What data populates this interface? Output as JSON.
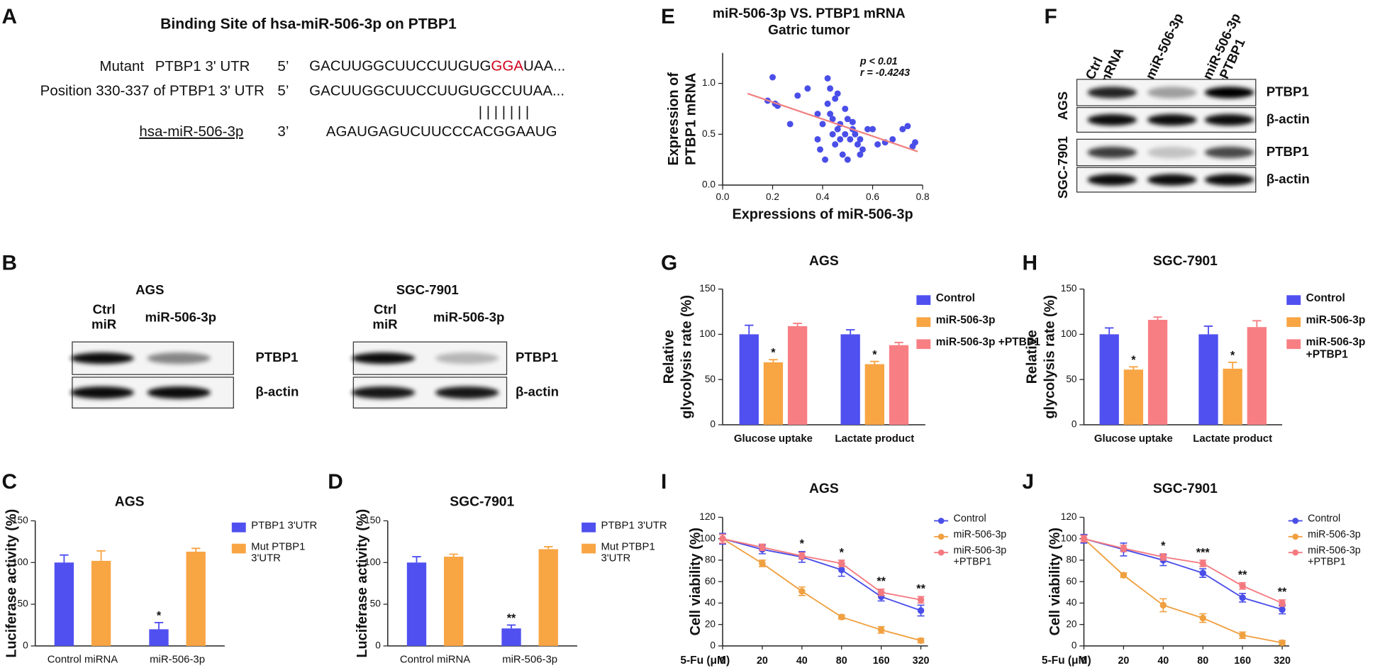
{
  "panel_labels": [
    "A",
    "B",
    "C",
    "D",
    "E",
    "F",
    "G",
    "H",
    "I",
    "J"
  ],
  "panel_a": {
    "title": "Binding Site of hsa-miR-506-3p on PTBP1",
    "mutant": {
      "label": "Mutant",
      "gene": "PTBP1 3' UTR",
      "end": "5’",
      "seq": [
        "GACUUGGCUUCCUUGUG",
        "GGA",
        "UAA..."
      ]
    },
    "wildtype": {
      "label": "Position 330-337 of PTBP1 3' UTR",
      "end": "5’",
      "seq": "GACUUGGCUUCCUUGUGCCUUAA..."
    },
    "pairing": "| | | | | | |",
    "mirna": {
      "label": "hsa-miR-506-3p",
      "end": "3’",
      "seq": "AGAUGAGUCUUCCCACGGAAUG"
    }
  },
  "panel_b": [
    {
      "title": "AGS",
      "lanes": [
        "Ctrl miR",
        "miR-506-3p"
      ],
      "rows": [
        "PTBP1",
        "β-actin"
      ]
    },
    {
      "title": "SGC-7901",
      "lanes": [
        "Ctrl miR",
        "miR-506-3p"
      ],
      "rows": [
        "PTBP1",
        "β-actin"
      ]
    }
  ],
  "panel_f": {
    "lanes": [
      "Ctrl mRNA",
      "miR-506-3p",
      "miR-506-3p +PTBP1"
    ],
    "blocks": [
      {
        "cell": "AGS",
        "rows": [
          "PTBP1",
          "β-actin"
        ]
      },
      {
        "cell": "SGC-7901",
        "rows": [
          "PTBP1",
          "β-actin"
        ]
      }
    ]
  },
  "chart_data": [
    {
      "type": "bar",
      "title": "AGS",
      "ylabel": "Luciferase activity (%)",
      "categories": [
        "Control miRNA",
        "miR-506-3p"
      ],
      "ylim": [
        0,
        150
      ],
      "yticks": [
        0,
        50,
        100,
        150
      ],
      "series": [
        {
          "name": "PTBP1 3'UTR",
          "color": "#5050f0",
          "values": [
            100,
            20
          ],
          "errors": [
            9,
            8
          ],
          "sig": [
            null,
            "*"
          ]
        },
        {
          "name": "Mut PTBP1 3'UTR",
          "color": "#f8a544",
          "values": [
            102,
            113
          ],
          "errors": [
            12,
            4
          ]
        }
      ]
    },
    {
      "type": "bar",
      "title": "SGC-7901",
      "ylabel": "Luciferase activity (%)",
      "categories": [
        "Control miRNA",
        "miR-506-3p"
      ],
      "ylim": [
        0,
        150
      ],
      "yticks": [
        0,
        50,
        100,
        150
      ],
      "series": [
        {
          "name": "PTBP1 3'UTR",
          "color": "#5050f0",
          "values": [
            100,
            21
          ],
          "errors": [
            7,
            4
          ],
          "sig": [
            null,
            "**"
          ]
        },
        {
          "name": "Mut PTBP1 3'UTR",
          "color": "#f8a544",
          "values": [
            107,
            116
          ],
          "errors": [
            3,
            3
          ]
        }
      ]
    },
    {
      "type": "scatter",
      "title": "miR-506-3p VS. PTBP1 mRNA",
      "subtitle": "Gatric tumor",
      "xlabel": "Expressions of miR-506-3p",
      "ylabel": [
        "Expression of",
        "PTBP1 mRNA"
      ],
      "annotations": [
        "p < 0.01",
        "r = -0.4243"
      ],
      "xlim": [
        0,
        0.8
      ],
      "xticks": [
        {
          "value": 0,
          "label": "0.0"
        },
        0.2,
        0.4,
        0.6,
        0.8
      ],
      "ylim": [
        0,
        1.3
      ],
      "yticks": [
        {
          "value": 0,
          "label": "0.0"
        },
        0.5,
        {
          "value": 1,
          "label": "1.0"
        }
      ],
      "color": "#4a4ee8",
      "x": [
        0.18,
        0.2,
        0.21,
        0.22,
        0.27,
        0.3,
        0.34,
        0.38,
        0.38,
        0.39,
        0.4,
        0.41,
        0.42,
        0.42,
        0.43,
        0.43,
        0.44,
        0.44,
        0.45,
        0.45,
        0.46,
        0.46,
        0.47,
        0.47,
        0.48,
        0.49,
        0.49,
        0.5,
        0.5,
        0.51,
        0.52,
        0.52,
        0.53,
        0.54,
        0.55,
        0.56,
        0.58,
        0.6,
        0.62,
        0.65,
        0.68,
        0.72,
        0.74,
        0.76,
        0.77,
        0.55
      ],
      "values": [
        0.83,
        1.06,
        0.8,
        0.78,
        0.6,
        0.88,
        0.95,
        0.7,
        0.45,
        0.35,
        0.6,
        0.25,
        0.8,
        1.05,
        0.95,
        0.7,
        0.65,
        0.5,
        0.85,
        0.4,
        0.9,
        0.55,
        0.6,
        0.45,
        0.3,
        0.75,
        0.5,
        0.65,
        0.25,
        0.45,
        0.62,
        0.55,
        0.5,
        0.4,
        0.45,
        0.35,
        0.55,
        0.55,
        0.4,
        0.42,
        0.45,
        0.55,
        0.58,
        0.38,
        0.42,
        0.3
      ],
      "fit": {
        "x": [
          0.1,
          0.78
        ],
        "values": [
          0.9,
          0.33
        ],
        "color": "#f08080"
      }
    },
    {
      "type": "bar",
      "title": "AGS",
      "ylabel": [
        "Relative",
        "glycolysis rate (%)"
      ],
      "categories": [
        "Glucose uptake",
        "Lactate product"
      ],
      "ylim": [
        0,
        150
      ],
      "yticks": [
        0,
        50,
        100,
        150
      ],
      "series": [
        {
          "name": "Control",
          "color": "#5050f0",
          "values": [
            100,
            100
          ],
          "errors": [
            10,
            5
          ]
        },
        {
          "name": "miR-506-3p",
          "color": "#f8a544",
          "values": [
            69,
            67
          ],
          "errors": [
            3,
            3
          ],
          "sig": [
            "*",
            "*"
          ]
        },
        {
          "name": "miR-506-3p +PTBP1",
          "color": "#f77f84",
          "values": [
            109,
            88
          ],
          "errors": [
            3,
            3
          ]
        }
      ]
    },
    {
      "type": "bar",
      "title": "SGC-7901",
      "ylabel": [
        "Relative",
        "glycolysis rate (%)"
      ],
      "categories": [
        "Glucose uptake",
        "Lactate product"
      ],
      "ylim": [
        0,
        150
      ],
      "yticks": [
        0,
        50,
        100,
        150
      ],
      "series": [
        {
          "name": "Control",
          "color": "#5050f0",
          "values": [
            100,
            100
          ],
          "errors": [
            7,
            9
          ]
        },
        {
          "name": "miR-506-3p",
          "color": "#f8a544",
          "values": [
            61,
            62
          ],
          "errors": [
            3,
            7
          ],
          "sig": [
            "*",
            "*"
          ]
        },
        {
          "name": "miR-506-3p +PTBP1",
          "color": "#f77f84",
          "values": [
            116,
            108
          ],
          "errors": [
            3,
            7
          ]
        }
      ]
    },
    {
      "type": "line",
      "title": "AGS",
      "ylabel": "Cell viability (%)",
      "xlabel": "5-Fu (μM)",
      "categories": [
        "0",
        "20",
        "40",
        "80",
        "160",
        "320"
      ],
      "ylim": [
        0,
        120
      ],
      "yticks": [
        0,
        20,
        40,
        60,
        80,
        100,
        120
      ],
      "sig": [
        null,
        null,
        "*",
        "*",
        "**",
        "**"
      ],
      "series": [
        {
          "name": "Control",
          "color": "#4a4ee8",
          "values": [
            100,
            90,
            83,
            71,
            46,
            33
          ],
          "errors": [
            5,
            4,
            5,
            6,
            4,
            5
          ]
        },
        {
          "name": "miR-506-3p",
          "color": "#f0a040",
          "values": [
            100,
            77,
            51,
            27,
            15,
            5
          ],
          "errors": [
            4,
            3,
            4,
            2,
            3,
            2
          ]
        },
        {
          "name": "miR-506-3p +PTBP1",
          "color": "#f47a80",
          "values": [
            100,
            92,
            84,
            77,
            50,
            43
          ],
          "errors": [
            4,
            3,
            3,
            3,
            3,
            3
          ]
        }
      ]
    },
    {
      "type": "line",
      "title": "SGC-7901",
      "ylabel": "Cell viability (%)",
      "xlabel": "5-Fu (μM)",
      "categories": [
        "0",
        "20",
        "40",
        "80",
        "160",
        "320"
      ],
      "ylim": [
        0,
        120
      ],
      "yticks": [
        0,
        20,
        40,
        60,
        80,
        100,
        120
      ],
      "sig": [
        null,
        null,
        "*",
        "***",
        "**",
        "**"
      ],
      "series": [
        {
          "name": "Control",
          "color": "#4a4ee8",
          "values": [
            100,
            90,
            80,
            68,
            45,
            34
          ],
          "errors": [
            4,
            6,
            5,
            4,
            4,
            4
          ]
        },
        {
          "name": "miR-506-3p",
          "color": "#f0a040",
          "values": [
            100,
            66,
            38,
            26,
            10,
            3
          ],
          "errors": [
            3,
            2,
            6,
            4,
            3,
            2
          ]
        },
        {
          "name": "miR-506-3p +PTBP1",
          "color": "#f47a80",
          "values": [
            100,
            91,
            83,
            77,
            56,
            40
          ],
          "errors": [
            3,
            3,
            3,
            3,
            3,
            3
          ]
        }
      ]
    }
  ]
}
